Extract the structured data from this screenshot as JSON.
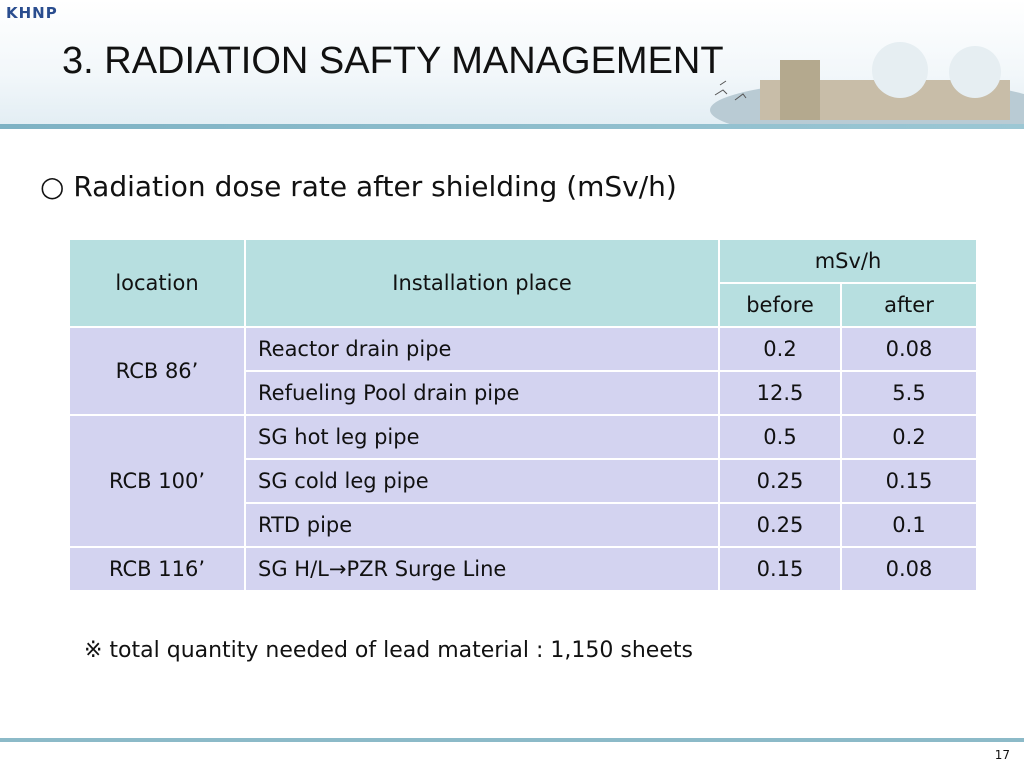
{
  "header": {
    "logo": "KHNP",
    "title": "3. RADIATION SAFTY MANAGEMENT"
  },
  "subtitle": "○ Radiation dose rate after shielding (mSv/h)",
  "table": {
    "columns": {
      "location": "location",
      "place": "Installation place",
      "unit": "mSv/h",
      "before": "before",
      "after": "after"
    },
    "groups": [
      {
        "location": "RCB 86’",
        "rows": [
          {
            "place": "Reactor drain pipe",
            "before": "0.2",
            "after": "0.08"
          },
          {
            "place": "Refueling Pool drain pipe",
            "before": "12.5",
            "after": "5.5"
          }
        ]
      },
      {
        "location": "RCB 100’",
        "rows": [
          {
            "place": "SG hot leg pipe",
            "before": "0.5",
            "after": "0.2"
          },
          {
            "place": "SG cold leg pipe",
            "before": "0.25",
            "after": "0.15"
          },
          {
            "place": "RTD pipe",
            "before": "0.25",
            "after": "0.1"
          }
        ]
      },
      {
        "location": "RCB 116’",
        "rows": [
          {
            "place": "SG H/L→PZR Surge Line",
            "before": "0.15",
            "after": "0.08"
          }
        ]
      }
    ]
  },
  "note": "※ total quantity needed of lead material : 1,150 sheets",
  "page_number": "17"
}
